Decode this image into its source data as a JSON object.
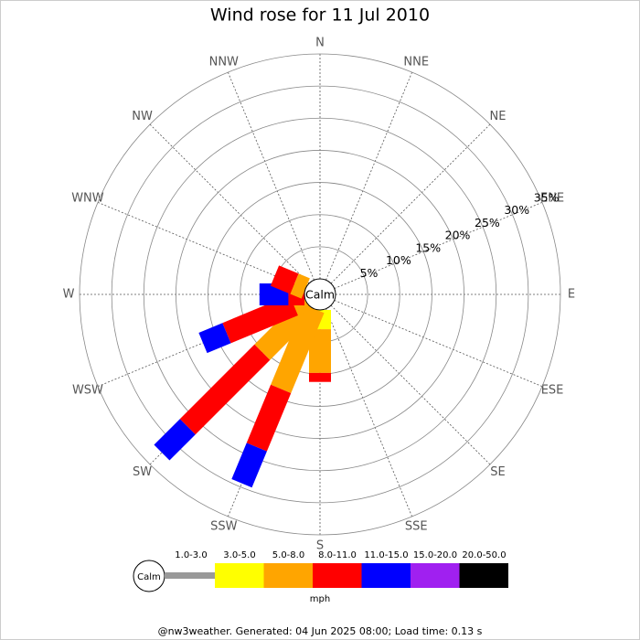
{
  "chart_data": {
    "type": "windrose",
    "title": "Wind rose for 11 Jul 2010",
    "categories": [
      "N",
      "NNE",
      "NE",
      "ENE",
      "E",
      "ESE",
      "SE",
      "SSE",
      "S",
      "SSW",
      "SW",
      "WSW",
      "W",
      "WNW",
      "NW",
      "NNW"
    ],
    "series": [
      {
        "name": "1.0-3.0",
        "color": "#999999",
        "values": [
          0,
          0,
          0,
          0,
          0,
          0,
          0,
          0,
          0,
          0,
          0,
          0,
          0,
          0,
          0,
          0
        ]
      },
      {
        "name": "3.0-5.0",
        "color": "#ffff00",
        "values": [
          0,
          0,
          0,
          0,
          0,
          0,
          0,
          0,
          3,
          0,
          0,
          0,
          0,
          0,
          0,
          0
        ]
      },
      {
        "name": "5.0-8.0",
        "color": "#ffa500",
        "values": [
          0,
          0,
          0,
          0,
          0,
          0,
          0,
          0,
          6.8,
          13.5,
          10.3,
          2,
          0,
          1.9,
          0,
          0
        ]
      },
      {
        "name": "8.0-11.0",
        "color": "#ff0000",
        "values": [
          0,
          0,
          0,
          0,
          0,
          0,
          0,
          0,
          1.4,
          9.8,
          16.4,
          11.3,
          2.5,
          3.3,
          0,
          0
        ]
      },
      {
        "name": "11.0-15.0",
        "color": "#0000ff",
        "values": [
          0,
          0,
          0,
          0,
          0,
          0,
          0,
          0,
          0,
          6.1,
          5.7,
          4,
          4.5,
          0,
          0,
          0
        ]
      },
      {
        "name": "15.0-20.0",
        "color": "#a020f0",
        "values": [
          0,
          0,
          0,
          0,
          0,
          0,
          0,
          0,
          0,
          0,
          0,
          0,
          0,
          0,
          0,
          0
        ]
      },
      {
        "name": "20.0-50.0",
        "color": "#000000",
        "values": [
          0,
          0,
          0,
          0,
          0,
          0,
          0,
          0,
          0,
          0,
          0,
          0,
          0,
          0,
          0,
          0
        ]
      }
    ],
    "rlim": [
      0,
      35
    ],
    "rticks": [
      {
        "value": 5,
        "label": "5%"
      },
      {
        "value": 10,
        "label": "10%"
      },
      {
        "value": 15,
        "label": "15%"
      },
      {
        "value": 20,
        "label": "20%"
      },
      {
        "value": 25,
        "label": "25%"
      },
      {
        "value": 30,
        "label": "30%"
      },
      {
        "value": 35,
        "label": "35%"
      }
    ],
    "calm_label": "Calm",
    "unit_label": "mph",
    "footer": "@nw3weather. Generated: 04 Jun 2025 08:00; Load time: 0.13 s"
  }
}
